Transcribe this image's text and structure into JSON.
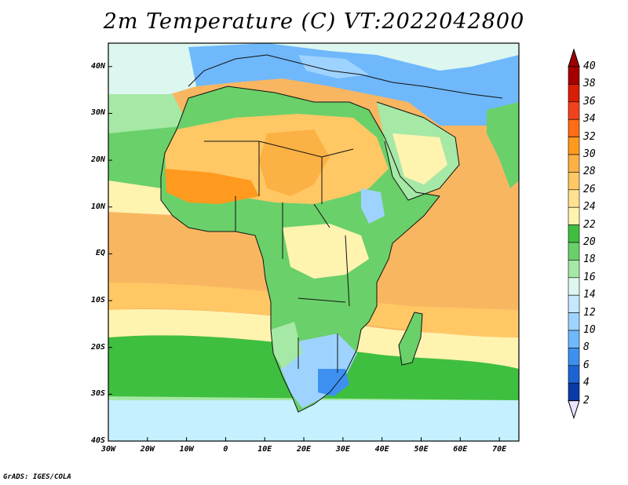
{
  "title": "2m Temperature (C) VT:2022042800",
  "credit": "GrADS: IGES/COLA",
  "map": {
    "lon_range": [
      -30,
      75
    ],
    "lat_range": [
      -40,
      45
    ],
    "lat_labels": [
      "40N",
      "30N",
      "20N",
      "10N",
      "EQ",
      "10S",
      "20S",
      "30S",
      "40S"
    ],
    "lat_values": [
      40,
      30,
      20,
      10,
      0,
      -10,
      -20,
      -30,
      -40
    ],
    "lon_labels": [
      "30W",
      "20W",
      "10W",
      "0",
      "10E",
      "20E",
      "30E",
      "40E",
      "50E",
      "60E",
      "70E"
    ],
    "lon_values": [
      -30,
      -20,
      -10,
      0,
      10,
      20,
      30,
      40,
      50,
      60,
      70
    ]
  },
  "colorbar": {
    "levels": [
      "40",
      "38",
      "36",
      "34",
      "32",
      "30",
      "28",
      "26",
      "24",
      "22",
      "20",
      "18",
      "16",
      "14",
      "12",
      "10",
      "8",
      "6",
      "4",
      "2"
    ],
    "colors": [
      "#a50000",
      "#d81e05",
      "#f1421e",
      "#ff6c14",
      "#ff9a1e",
      "#fcb145",
      "#ffc865",
      "#ffe190",
      "#fff3b0",
      "#3fbf3f",
      "#6ad06a",
      "#a6e8a6",
      "#dcf6f0",
      "#c5e8ff",
      "#9ed3ff",
      "#6fb8fb",
      "#3d90f0",
      "#1c64d4",
      "#0a3aa8",
      "#101573"
    ],
    "top_color": "#9c0000",
    "bottom_color": "#e8e4ff"
  }
}
